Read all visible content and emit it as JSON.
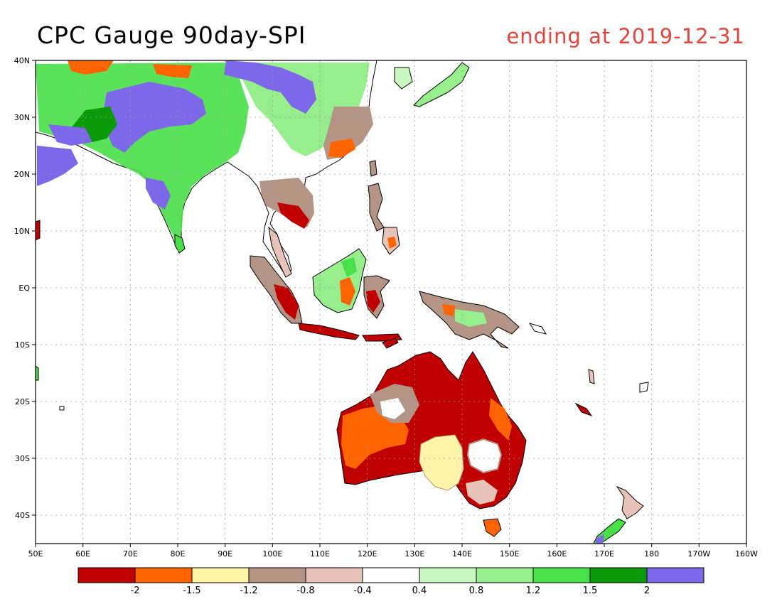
{
  "title": {
    "main": "CPC Gauge 90day-SPI",
    "date": "ending at 2019-12-31"
  },
  "map": {
    "lon_range": [
      50,
      200
    ],
    "lat_range": [
      -45,
      40
    ],
    "lon_ticks": [
      {
        "value": 50,
        "label": "50E"
      },
      {
        "value": 60,
        "label": "60E"
      },
      {
        "value": 70,
        "label": "70E"
      },
      {
        "value": 80,
        "label": "80E"
      },
      {
        "value": 90,
        "label": "90E"
      },
      {
        "value": 100,
        "label": "100E"
      },
      {
        "value": 110,
        "label": "110E"
      },
      {
        "value": 120,
        "label": "120E"
      },
      {
        "value": 130,
        "label": "130E"
      },
      {
        "value": 140,
        "label": "140E"
      },
      {
        "value": 150,
        "label": "150E"
      },
      {
        "value": 160,
        "label": "160E"
      },
      {
        "value": 170,
        "label": "170E"
      },
      {
        "value": 180,
        "label": "180"
      },
      {
        "value": 190,
        "label": "170W"
      },
      {
        "value": 200,
        "label": "160W"
      }
    ],
    "lat_ticks": [
      {
        "value": 40,
        "label": "40N"
      },
      {
        "value": 30,
        "label": "30N"
      },
      {
        "value": 20,
        "label": "20N"
      },
      {
        "value": 10,
        "label": "10N"
      },
      {
        "value": 0,
        "label": "EQ"
      },
      {
        "value": -10,
        "label": "10S"
      },
      {
        "value": -20,
        "label": "20S"
      },
      {
        "value": -30,
        "label": "30S"
      },
      {
        "value": -40,
        "label": "40S"
      }
    ]
  },
  "colorbar": {
    "colors": [
      "#c00000",
      "#ff6400",
      "#fff4a8",
      "#b49484",
      "#e8c4b8",
      "#ffffff",
      "#c8f8c0",
      "#96ee8c",
      "#48e048",
      "#0a9a0a",
      "#7c68e8"
    ],
    "labels": [
      "-2",
      "-1.5",
      "-1.2",
      "-0.8",
      "-0.4",
      "0.4",
      "0.8",
      "1.2",
      "1.5",
      "2"
    ]
  },
  "regions": [
    {
      "class": "very-wet",
      "color": "#7c68e8",
      "lon": [
        78,
        102
      ],
      "lat": [
        30,
        40
      ]
    },
    {
      "class": "wet",
      "color": "#48e048",
      "lon": [
        60,
        100
      ],
      "lat": [
        22,
        38
      ]
    },
    {
      "class": "very-dry",
      "color": "#c00000",
      "lon": [
        122,
        153
      ],
      "lat": [
        -38,
        -14
      ]
    },
    {
      "class": "moderately-dry",
      "color": "#ff6400",
      "lon": [
        115,
        135
      ],
      "lat": [
        -32,
        -20
      ]
    },
    {
      "class": "slightly-dry",
      "color": "#fff4a8",
      "lon": [
        131,
        140
      ],
      "lat": [
        -34,
        -27
      ]
    }
  ]
}
